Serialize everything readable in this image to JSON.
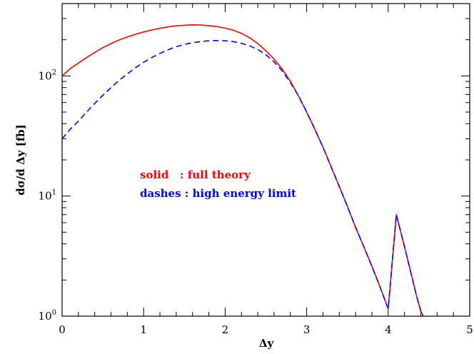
{
  "chart_data": {
    "type": "line",
    "xlabel": "Δy",
    "ylabel": "dσ/d Δy [fb]",
    "xlim": [
      0,
      5
    ],
    "ylim": [
      1,
      400
    ],
    "yscale": "log",
    "x_ticks": [
      "0",
      "1",
      "2",
      "3",
      "4",
      "5"
    ],
    "y_ticks": [
      {
        "base": "10",
        "exp": "0",
        "value": 1
      },
      {
        "base": "10",
        "exp": "1",
        "value": 10
      },
      {
        "base": "10",
        "exp": "2",
        "value": 100
      }
    ],
    "grid": false,
    "legend": [
      {
        "text": "solid   : full theory",
        "color": "#ff0000"
      },
      {
        "text": "dashes : high energy limit",
        "color": "#0000ff"
      }
    ],
    "series": [
      {
        "style": "solid",
        "color": "#ff0000",
        "x": [
          0.0,
          0.1,
          0.2,
          0.3,
          0.4,
          0.5,
          0.6,
          0.7,
          0.8,
          0.9,
          1.0,
          1.1,
          1.2,
          1.3,
          1.4,
          1.5,
          1.6,
          1.7,
          1.8,
          1.9,
          2.0,
          2.1,
          2.2,
          2.3,
          2.4,
          2.5,
          2.6,
          2.7,
          2.8,
          2.9,
          3.0,
          3.1,
          3.2,
          3.3,
          3.4,
          3.5,
          3.6,
          3.7,
          3.8,
          3.9,
          4.0,
          4.1,
          4.2,
          4.3,
          4.35,
          4.4,
          4.43
        ],
        "y": [
          100,
          115,
          128,
          142,
          157,
          172,
          186,
          199,
          211,
          222,
          232,
          241,
          249,
          256,
          261,
          264,
          266,
          265,
          262,
          257,
          250,
          240,
          226,
          208,
          186,
          162,
          138,
          114,
          90,
          68,
          50,
          36,
          25.5,
          17.5,
          12,
          8.2,
          5.5,
          3.8,
          2.6,
          1.75,
          1.15,
          7.0,
          3.8,
          2.0,
          1.45,
          1.1,
          1.0
        ]
      },
      {
        "style": "dashed",
        "color": "#0000ff",
        "x": [
          0.0,
          0.1,
          0.2,
          0.3,
          0.4,
          0.5,
          0.6,
          0.7,
          0.8,
          0.9,
          1.0,
          1.1,
          1.2,
          1.3,
          1.4,
          1.5,
          1.6,
          1.7,
          1.8,
          1.9,
          2.0,
          2.1,
          2.2,
          2.3,
          2.4,
          2.5,
          2.6,
          2.7,
          2.8,
          2.9,
          3.0,
          3.1,
          3.2,
          3.3,
          3.4,
          3.5,
          3.6,
          3.7,
          3.8,
          3.9,
          4.0,
          4.1,
          4.2,
          4.3,
          4.35,
          4.4,
          4.43
        ],
        "y": [
          30,
          36,
          42,
          50,
          59,
          69,
          80,
          92,
          104,
          117,
          130,
          142,
          154,
          165,
          175,
          183,
          189,
          193,
          196,
          197,
          196,
          193,
          187,
          178,
          166,
          150,
          131,
          110,
          88,
          68,
          50,
          36,
          25.5,
          17.5,
          12,
          8.2,
          5.5,
          3.8,
          2.6,
          1.75,
          1.15,
          7.0,
          3.8,
          2.0,
          1.45,
          1.1,
          1.0
        ]
      }
    ]
  }
}
